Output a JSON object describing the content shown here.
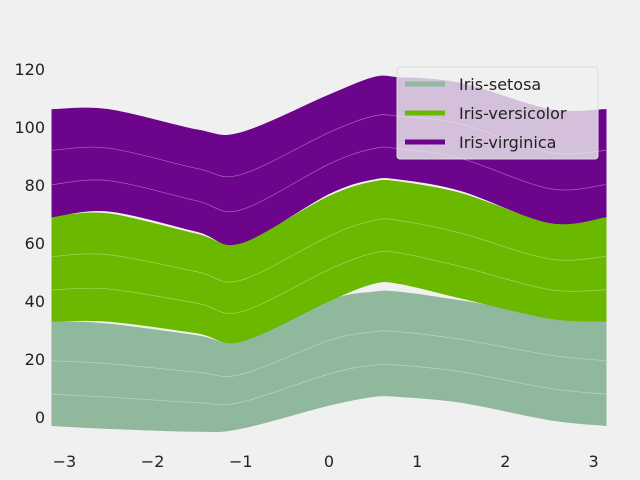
{
  "chart_data": {
    "type": "area",
    "title": "",
    "xlabel": "",
    "ylabel": "",
    "xlim": [
      -3.14,
      3.14
    ],
    "ylim": [
      -8,
      130
    ],
    "x_ticks": [
      -3,
      -2,
      -1,
      0,
      1,
      2,
      3
    ],
    "x_tick_labels": [
      "−3",
      "−2",
      "−1",
      "0",
      "1",
      "2",
      "3"
    ],
    "y_ticks": [
      0,
      20,
      40,
      60,
      80,
      100,
      120
    ],
    "y_tick_labels": [
      "0",
      "20",
      "40",
      "60",
      "80",
      "100",
      "120"
    ],
    "grid": false,
    "legend_position": "top-right",
    "series": [
      {
        "name": "Iris-setosa",
        "color": "#8fb89d",
        "x": [
          -3.14,
          -2.5,
          -1.5,
          -1.0,
          0,
          0.5,
          0.8,
          1.5,
          2.5,
          3.14
        ],
        "lower": [
          -3,
          -4,
          -5,
          -4,
          4,
          7,
          7,
          5,
          -1,
          -3
        ],
        "upper": [
          33,
          32,
          28,
          26,
          40,
          43,
          43,
          40,
          35,
          33
        ]
      },
      {
        "name": "Iris-versicolor",
        "color": "#6ab800",
        "x": [
          -3.14,
          -2.5,
          -1.5,
          -1.0,
          0,
          0.5,
          0.8,
          1.5,
          2.5,
          3.14
        ],
        "lower": [
          33,
          33,
          29,
          26,
          40,
          46,
          46,
          41,
          34,
          33
        ],
        "upper": [
          69,
          70,
          63,
          60,
          76,
          81,
          81,
          77,
          67,
          69
        ]
      },
      {
        "name": "Iris-virginica",
        "color": "#6c048c",
        "x": [
          -3.14,
          -2.5,
          -1.5,
          -1.0,
          0,
          0.5,
          0.8,
          1.5,
          2.5,
          3.14
        ],
        "lower": [
          69,
          71,
          64,
          60,
          77,
          82,
          82,
          78,
          67,
          69
        ],
        "upper": [
          106,
          106,
          99,
          98,
          111,
          117,
          117,
          115,
          106,
          106
        ]
      }
    ]
  }
}
